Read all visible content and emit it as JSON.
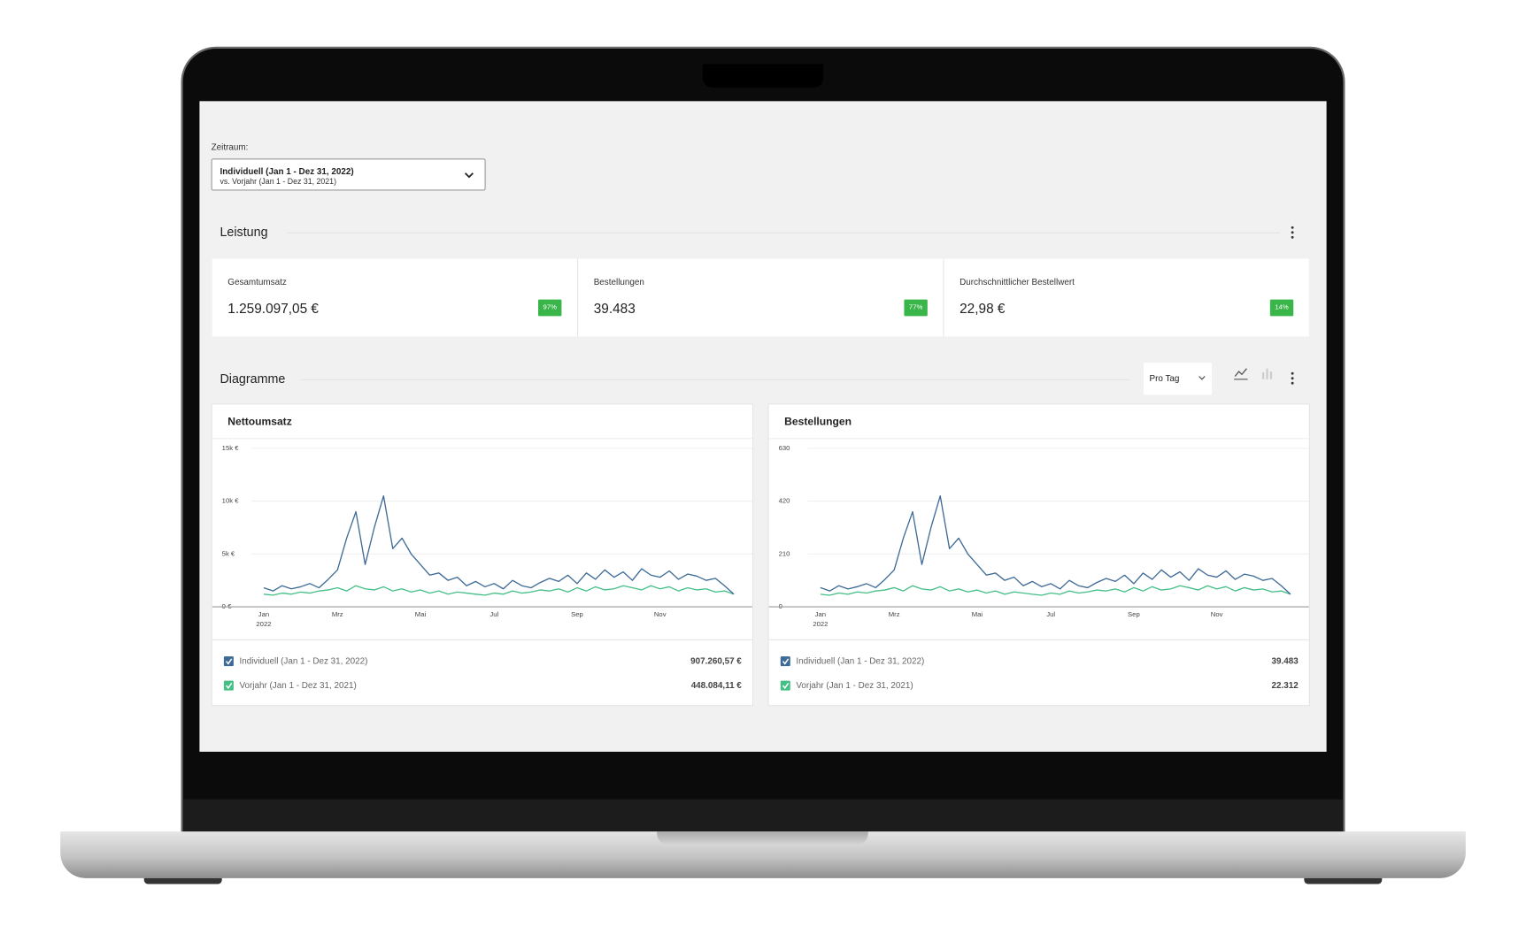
{
  "filter": {
    "label": "Zeitraum:",
    "selected": "Individuell (Jan 1 - Dez 31, 2022)",
    "compare": "vs. Vorjahr (Jan 1 - Dez 31, 2021)"
  },
  "performance": {
    "title": "Leistung",
    "kpis": [
      {
        "label": "Gesamtumsatz",
        "value": "1.259.097,05 €",
        "change": "97%"
      },
      {
        "label": "Bestellungen",
        "value": "39.483",
        "change": "77%"
      },
      {
        "label": "Durchschnittlicher Bestellwert",
        "value": "22,98 €",
        "change": "14%"
      }
    ]
  },
  "charts_section": {
    "title": "Diagramme",
    "interval": "Pro Tag"
  },
  "chart_data": [
    {
      "type": "line",
      "title": "Nettoumsatz",
      "categories": [
        "Jan",
        null,
        null,
        null,
        null,
        null,
        null,
        null,
        "Mrz",
        null,
        null,
        null,
        null,
        null,
        null,
        null,
        null,
        "Mai",
        null,
        null,
        null,
        null,
        null,
        null,
        null,
        "Jul",
        null,
        null,
        null,
        null,
        null,
        null,
        null,
        null,
        "Sep",
        null,
        null,
        null,
        null,
        null,
        null,
        null,
        null,
        "Nov",
        null,
        null,
        null,
        null,
        null,
        null,
        null,
        null
      ],
      "x_year_label": "2022",
      "ylim": [
        0,
        15000
      ],
      "yticks": [
        {
          "value": 0,
          "label": "0 €"
        },
        {
          "value": 5000,
          "label": "5k €"
        },
        {
          "value": 10000,
          "label": "10k €"
        },
        {
          "value": 15000,
          "label": "15k €"
        }
      ],
      "grid": true,
      "series": [
        {
          "name": "Individuell (Jan 1 - Dez 31, 2022)",
          "color": "#3d6a96",
          "total": "907.260,57 €",
          "values": [
            1800,
            1500,
            2000,
            1700,
            1900,
            2200,
            1800,
            2600,
            3500,
            6500,
            9000,
            4000,
            7500,
            10500,
            5500,
            6500,
            5000,
            4000,
            3000,
            3200,
            2500,
            2800,
            2000,
            2400,
            1900,
            2200,
            1700,
            2500,
            2000,
            1800,
            2300,
            2700,
            2400,
            3000,
            2200,
            3200,
            2600,
            3500,
            2800,
            3300,
            2500,
            3600,
            3000,
            2800,
            3400,
            2600,
            3100,
            2900,
            2500,
            2700,
            2000,
            1200
          ]
        },
        {
          "name": "Vorjahr (Jan 1 - Dez 31, 2021)",
          "color": "#44bf86",
          "total": "448.084,11 €",
          "values": [
            1200,
            1100,
            1300,
            1200,
            1400,
            1300,
            1500,
            1600,
            1800,
            1500,
            2000,
            1700,
            1600,
            1900,
            1500,
            1700,
            1400,
            1600,
            1300,
            1500,
            1200,
            1400,
            1300,
            1200,
            1100,
            1300,
            1200,
            1500,
            1300,
            1400,
            1600,
            1500,
            1700,
            1400,
            1800,
            1500,
            1900,
            1600,
            1700,
            2000,
            1800,
            1600,
            2000,
            1700,
            1900,
            1500,
            1800,
            1600,
            1700,
            1400,
            1500,
            1200
          ]
        }
      ]
    },
    {
      "type": "line",
      "title": "Bestellungen",
      "categories": [
        "Jan",
        null,
        null,
        null,
        null,
        null,
        null,
        null,
        "Mrz",
        null,
        null,
        null,
        null,
        null,
        null,
        null,
        null,
        "Mai",
        null,
        null,
        null,
        null,
        null,
        null,
        null,
        "Jul",
        null,
        null,
        null,
        null,
        null,
        null,
        null,
        null,
        "Sep",
        null,
        null,
        null,
        null,
        null,
        null,
        null,
        null,
        "Nov",
        null,
        null,
        null,
        null,
        null,
        null,
        null,
        null
      ],
      "x_year_label": "2022",
      "ylim": [
        0,
        630
      ],
      "yticks": [
        0,
        210,
        420,
        630
      ],
      "grid": true,
      "series": [
        {
          "name": "Individuell (Jan 1 - Dez 31, 2022)",
          "color": "#3d6a96",
          "total": "39.483",
          "values": [
            76,
            63,
            84,
            71,
            80,
            92,
            76,
            109,
            147,
            273,
            378,
            168,
            315,
            441,
            231,
            273,
            210,
            168,
            126,
            134,
            105,
            118,
            84,
            101,
            80,
            92,
            71,
            105,
            84,
            76,
            97,
            113,
            101,
            126,
            92,
            134,
            109,
            147,
            118,
            139,
            105,
            151,
            126,
            118,
            143,
            109,
            130,
            122,
            105,
            113,
            84,
            50
          ]
        },
        {
          "name": "Vorjahr (Jan 1 - Dez 31, 2021)",
          "color": "#44bf86",
          "total": "22.312",
          "values": [
            50,
            46,
            55,
            50,
            59,
            55,
            63,
            67,
            76,
            63,
            84,
            71,
            67,
            80,
            63,
            71,
            59,
            67,
            55,
            63,
            50,
            59,
            55,
            50,
            46,
            55,
            50,
            63,
            55,
            59,
            67,
            63,
            71,
            59,
            76,
            63,
            80,
            67,
            71,
            84,
            76,
            67,
            84,
            71,
            80,
            63,
            76,
            67,
            71,
            59,
            63,
            50
          ]
        }
      ]
    }
  ]
}
